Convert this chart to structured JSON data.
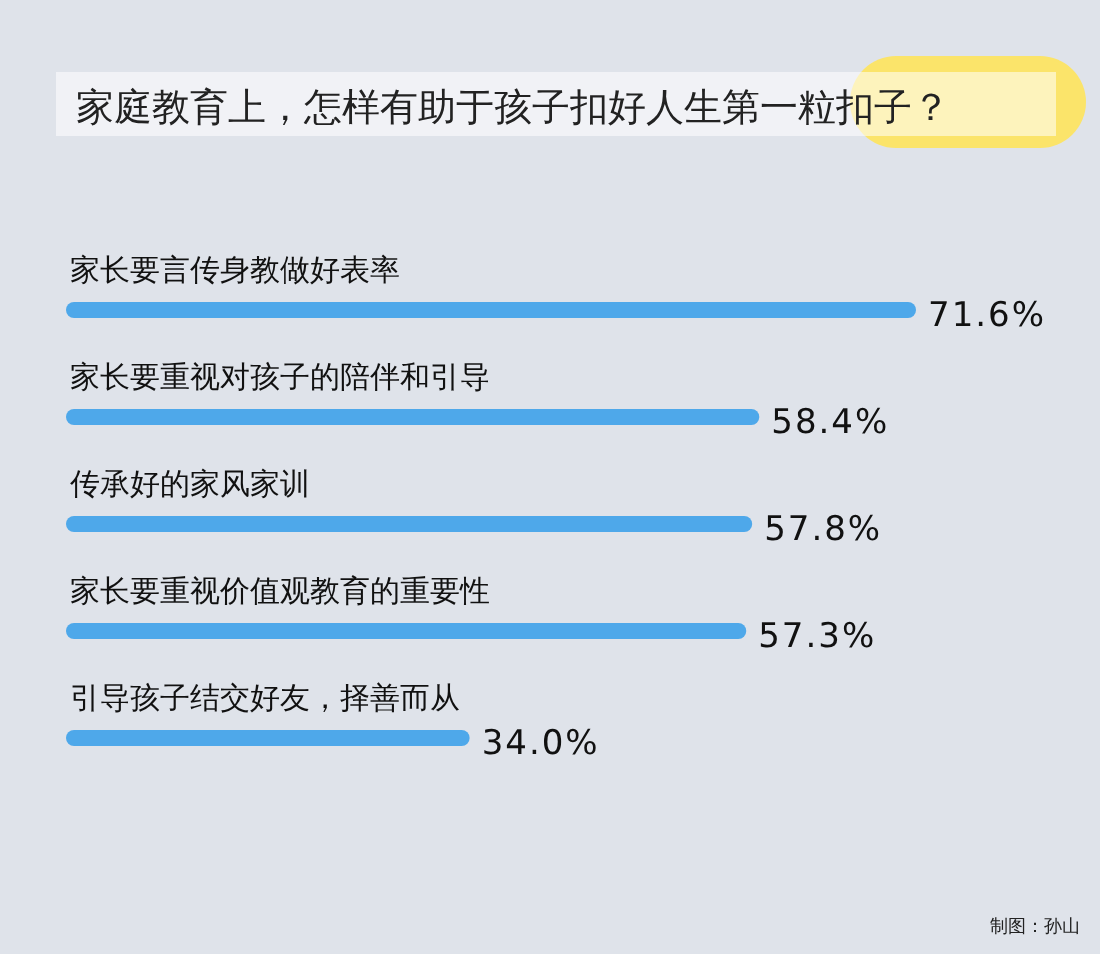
{
  "chart_data": {
    "type": "bar",
    "orientation": "horizontal",
    "title": "家庭教育上，怎样有助于孩子扣好人生第一粒扣子？",
    "categories": [
      "家长要言传身教做好表率",
      "家长要重视对孩子的陪伴和引导",
      "传承好的家风家训",
      "家长要重视价值观教育的重要性",
      "引导孩子结交好友，择善而从"
    ],
    "values": [
      71.6,
      58.4,
      57.8,
      57.3,
      34.0
    ],
    "value_labels": [
      "71.6%",
      "58.4%",
      "57.8%",
      "57.3%",
      "34.0%"
    ],
    "color": "#4ea8ea",
    "annotations": [
      "制图：孙山"
    ]
  }
}
